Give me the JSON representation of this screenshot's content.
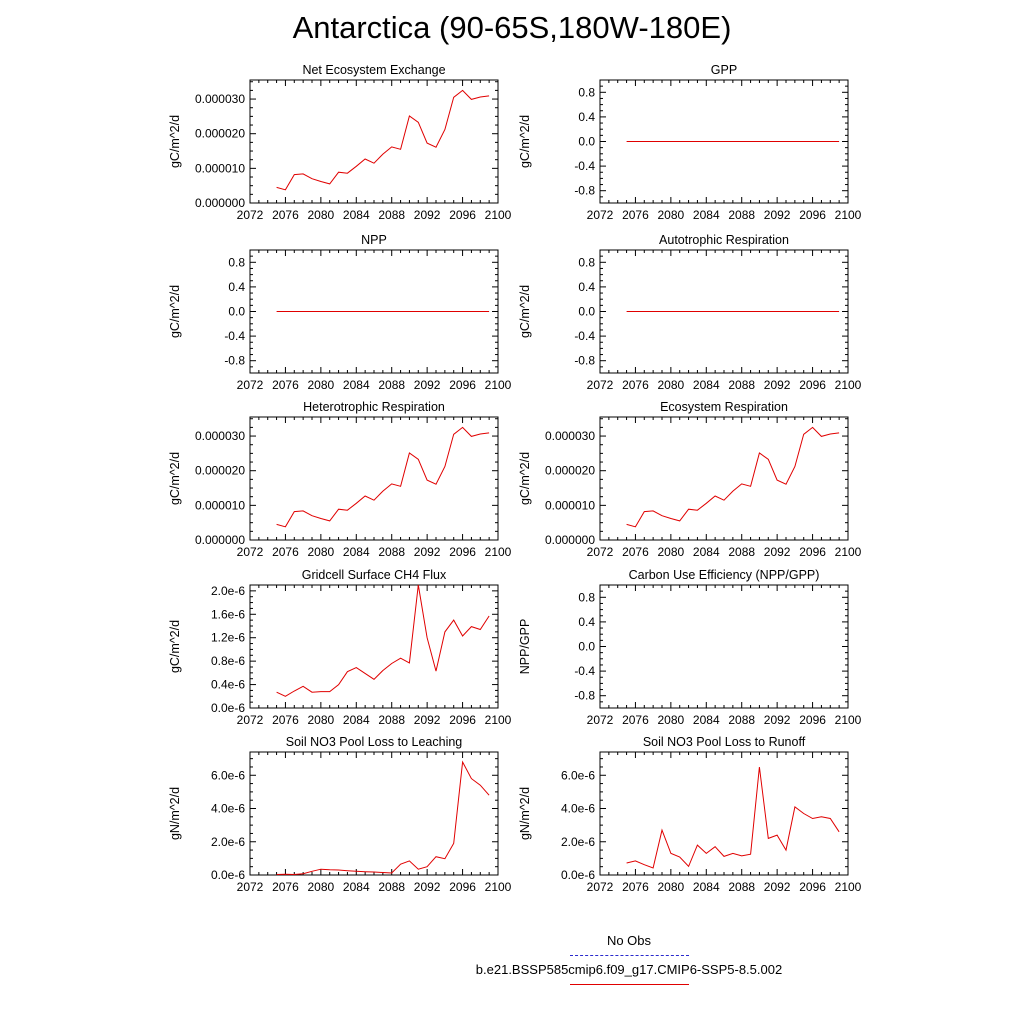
{
  "title": "Antarctica (90-65S,180W-180E)",
  "colors": {
    "series": "#e00000",
    "obs": "#2a2acd",
    "axis": "#000000"
  },
  "legend": {
    "entries": [
      {
        "label": "No Obs",
        "style": "dashed",
        "color": "#2a2acd"
      },
      {
        "label": "b.e21.BSSP585cmip6.f09_g17.CMIP6-SSP5-8.5.002",
        "style": "solid",
        "color": "#e00000"
      }
    ]
  },
  "chart_data": [
    {
      "type": "line",
      "title": "Net Ecosystem Exchange",
      "xlabel": "",
      "ylabel": "gC/m^2/d",
      "xlim": [
        2072,
        2100
      ],
      "ylim": [
        0,
        3.55e-05
      ],
      "xticks": [
        2072,
        2076,
        2080,
        2084,
        2088,
        2092,
        2096,
        2100
      ],
      "yticks": [
        0,
        1e-05,
        2e-05,
        3e-05
      ],
      "ytick_labels": [
        "0.000000",
        "0.000010",
        "0.000020",
        "0.000030"
      ],
      "series": [
        {
          "x": [
            2075,
            2076,
            2077,
            2078,
            2079,
            2080,
            2081,
            2082,
            2083,
            2084,
            2085,
            2086,
            2087,
            2088,
            2089,
            2090,
            2091,
            2092,
            2093,
            2094,
            2095,
            2096,
            2097,
            2098,
            2099
          ],
          "values": [
            4.5e-06,
            3.8e-06,
            8.2e-06,
            8.4e-06,
            7e-06,
            6.2e-06,
            5.5e-06,
            8.9e-06,
            8.6e-06,
            1.06e-05,
            1.27e-05,
            1.15e-05,
            1.41e-05,
            1.62e-05,
            1.55e-05,
            2.51e-05,
            2.33e-05,
            1.73e-05,
            1.61e-05,
            2.12e-05,
            3.05e-05,
            3.25e-05,
            2.99e-05,
            3.06e-05,
            3.09e-05
          ]
        }
      ]
    },
    {
      "type": "line",
      "title": "GPP",
      "xlabel": "",
      "ylabel": "gC/m^2/d",
      "xlim": [
        2072,
        2100
      ],
      "ylim": [
        -1,
        1
      ],
      "xticks": [
        2072,
        2076,
        2080,
        2084,
        2088,
        2092,
        2096,
        2100
      ],
      "yticks": [
        -0.8,
        -0.4,
        0,
        0.4,
        0.8
      ],
      "ytick_labels": [
        "-0.8",
        "-0.4",
        "0.0",
        "0.4",
        "0.8"
      ],
      "series": [
        {
          "x": [
            2075,
            2099
          ],
          "values": [
            0,
            0
          ]
        }
      ]
    },
    {
      "type": "line",
      "title": "NPP",
      "xlabel": "",
      "ylabel": "gC/m^2/d",
      "xlim": [
        2072,
        2100
      ],
      "ylim": [
        -1,
        1
      ],
      "xticks": [
        2072,
        2076,
        2080,
        2084,
        2088,
        2092,
        2096,
        2100
      ],
      "yticks": [
        -0.8,
        -0.4,
        0,
        0.4,
        0.8
      ],
      "ytick_labels": [
        "-0.8",
        "-0.4",
        "0.0",
        "0.4",
        "0.8"
      ],
      "series": [
        {
          "x": [
            2075,
            2099
          ],
          "values": [
            0,
            0
          ]
        }
      ]
    },
    {
      "type": "line",
      "title": "Autotrophic Respiration",
      "xlabel": "",
      "ylabel": "gC/m^2/d",
      "xlim": [
        2072,
        2100
      ],
      "ylim": [
        -1,
        1
      ],
      "xticks": [
        2072,
        2076,
        2080,
        2084,
        2088,
        2092,
        2096,
        2100
      ],
      "yticks": [
        -0.8,
        -0.4,
        0,
        0.4,
        0.8
      ],
      "ytick_labels": [
        "-0.8",
        "-0.4",
        "0.0",
        "0.4",
        "0.8"
      ],
      "series": [
        {
          "x": [
            2075,
            2099
          ],
          "values": [
            0,
            0
          ]
        }
      ]
    },
    {
      "type": "line",
      "title": "Heterotrophic Respiration",
      "xlabel": "",
      "ylabel": "gC/m^2/d",
      "xlim": [
        2072,
        2100
      ],
      "ylim": [
        0,
        3.55e-05
      ],
      "xticks": [
        2072,
        2076,
        2080,
        2084,
        2088,
        2092,
        2096,
        2100
      ],
      "yticks": [
        0,
        1e-05,
        2e-05,
        3e-05
      ],
      "ytick_labels": [
        "0.000000",
        "0.000010",
        "0.000020",
        "0.000030"
      ],
      "series": [
        {
          "x": [
            2075,
            2076,
            2077,
            2078,
            2079,
            2080,
            2081,
            2082,
            2083,
            2084,
            2085,
            2086,
            2087,
            2088,
            2089,
            2090,
            2091,
            2092,
            2093,
            2094,
            2095,
            2096,
            2097,
            2098,
            2099
          ],
          "values": [
            4.5e-06,
            3.8e-06,
            8.2e-06,
            8.4e-06,
            7e-06,
            6.2e-06,
            5.5e-06,
            8.9e-06,
            8.6e-06,
            1.06e-05,
            1.27e-05,
            1.15e-05,
            1.41e-05,
            1.62e-05,
            1.55e-05,
            2.51e-05,
            2.33e-05,
            1.73e-05,
            1.61e-05,
            2.12e-05,
            3.05e-05,
            3.25e-05,
            2.99e-05,
            3.06e-05,
            3.09e-05
          ]
        }
      ]
    },
    {
      "type": "line",
      "title": "Ecosystem Respiration",
      "xlabel": "",
      "ylabel": "gC/m^2/d",
      "xlim": [
        2072,
        2100
      ],
      "ylim": [
        0,
        3.55e-05
      ],
      "xticks": [
        2072,
        2076,
        2080,
        2084,
        2088,
        2092,
        2096,
        2100
      ],
      "yticks": [
        0,
        1e-05,
        2e-05,
        3e-05
      ],
      "ytick_labels": [
        "0.000000",
        "0.000010",
        "0.000020",
        "0.000030"
      ],
      "series": [
        {
          "x": [
            2075,
            2076,
            2077,
            2078,
            2079,
            2080,
            2081,
            2082,
            2083,
            2084,
            2085,
            2086,
            2087,
            2088,
            2089,
            2090,
            2091,
            2092,
            2093,
            2094,
            2095,
            2096,
            2097,
            2098,
            2099
          ],
          "values": [
            4.5e-06,
            3.8e-06,
            8.2e-06,
            8.4e-06,
            7e-06,
            6.2e-06,
            5.5e-06,
            8.9e-06,
            8.6e-06,
            1.06e-05,
            1.27e-05,
            1.15e-05,
            1.41e-05,
            1.62e-05,
            1.55e-05,
            2.51e-05,
            2.33e-05,
            1.73e-05,
            1.61e-05,
            2.12e-05,
            3.05e-05,
            3.25e-05,
            2.99e-05,
            3.06e-05,
            3.09e-05
          ]
        }
      ]
    },
    {
      "type": "line",
      "title": "Gridcell Surface CH4 Flux",
      "xlabel": "",
      "ylabel": "gC/m^2/d",
      "xlim": [
        2072,
        2100
      ],
      "ylim": [
        0,
        2.1e-06
      ],
      "xticks": [
        2072,
        2076,
        2080,
        2084,
        2088,
        2092,
        2096,
        2100
      ],
      "yticks": [
        0,
        4e-07,
        8e-07,
        1.2e-06,
        1.6e-06,
        2e-06
      ],
      "ytick_labels": [
        "0.0e-6",
        "0.4e-6",
        "0.8e-6",
        "1.2e-6",
        "1.6e-6",
        "2.0e-6"
      ],
      "series": [
        {
          "x": [
            2075,
            2076,
            2077,
            2078,
            2079,
            2080,
            2081,
            2082,
            2083,
            2084,
            2085,
            2086,
            2087,
            2088,
            2089,
            2090,
            2091,
            2092,
            2093,
            2094,
            2095,
            2096,
            2097,
            2098,
            2099
          ],
          "values": [
            2.7e-07,
            2e-07,
            2.9e-07,
            3.7e-07,
            2.7e-07,
            2.8e-07,
            2.8e-07,
            4e-07,
            6.2e-07,
            6.9e-07,
            5.9e-07,
            4.9e-07,
            6.4e-07,
            7.6e-07,
            8.5e-07,
            7.7e-07,
            2.1e-06,
            1.2e-06,
            6.3e-07,
            1.3e-06,
            1.5e-06,
            1.23e-06,
            1.39e-06,
            1.34e-06,
            1.57e-06
          ]
        }
      ]
    },
    {
      "type": "line",
      "title": "Carbon Use Efficiency (NPP/GPP)",
      "xlabel": "",
      "ylabel": "NPP/GPP",
      "xlim": [
        2072,
        2100
      ],
      "ylim": [
        -1,
        1
      ],
      "xticks": [
        2072,
        2076,
        2080,
        2084,
        2088,
        2092,
        2096,
        2100
      ],
      "yticks": [
        -0.8,
        -0.4,
        0,
        0.4,
        0.8
      ],
      "ytick_labels": [
        "-0.8",
        "-0.4",
        "0.0",
        "0.4",
        "0.8"
      ],
      "series": []
    },
    {
      "type": "line",
      "title": "Soil NO3 Pool Loss to Leaching",
      "xlabel": "",
      "ylabel": "gN/m^2/d",
      "xlim": [
        2072,
        2100
      ],
      "ylim": [
        0,
        7.4e-06
      ],
      "xticks": [
        2072,
        2076,
        2080,
        2084,
        2088,
        2092,
        2096,
        2100
      ],
      "yticks": [
        0,
        2e-06,
        4e-06,
        6e-06
      ],
      "ytick_labels": [
        "0.0e-6",
        "2.0e-6",
        "4.0e-6",
        "6.0e-6"
      ],
      "series": [
        {
          "x": [
            2075,
            2076,
            2077,
            2078,
            2079,
            2080,
            2081,
            2082,
            2083,
            2084,
            2085,
            2086,
            2087,
            2088,
            2089,
            2090,
            2091,
            2092,
            2093,
            2094,
            2095,
            2096,
            2097,
            2098,
            2099
          ],
          "values": [
            3e-08,
            5e-08,
            3e-08,
            8e-08,
            2.2e-07,
            3.5e-07,
            3.2e-07,
            3e-07,
            2.6e-07,
            2.2e-07,
            2e-07,
            1.8e-07,
            1.5e-07,
            1.2e-07,
            6.5e-07,
            8.5e-07,
            3.5e-07,
            5e-07,
            1.1e-06,
            9.8e-07,
            1.9e-06,
            6.8e-06,
            5.8e-06,
            5.4e-06,
            4.8e-06
          ]
        }
      ]
    },
    {
      "type": "line",
      "title": "Soil NO3 Pool Loss to Runoff",
      "xlabel": "",
      "ylabel": "gN/m^2/d",
      "xlim": [
        2072,
        2100
      ],
      "ylim": [
        0,
        7.4e-06
      ],
      "xticks": [
        2072,
        2076,
        2080,
        2084,
        2088,
        2092,
        2096,
        2100
      ],
      "yticks": [
        0,
        2e-06,
        4e-06,
        6e-06
      ],
      "ytick_labels": [
        "0.0e-6",
        "2.0e-6",
        "4.0e-6",
        "6.0e-6"
      ],
      "series": [
        {
          "x": [
            2075,
            2076,
            2077,
            2078,
            2079,
            2080,
            2081,
            2082,
            2083,
            2084,
            2085,
            2086,
            2087,
            2088,
            2089,
            2090,
            2091,
            2092,
            2093,
            2094,
            2095,
            2096,
            2097,
            2098,
            2099
          ],
          "values": [
            7.2e-07,
            8.5e-07,
            6.2e-07,
            4.2e-07,
            2.7e-06,
            1.3e-06,
            1.08e-06,
            5.2e-07,
            1.8e-06,
            1.3e-06,
            1.7e-06,
            1.12e-06,
            1.3e-06,
            1.15e-06,
            1.25e-06,
            6.5e-06,
            2.2e-06,
            2.4e-06,
            1.5e-06,
            4.1e-06,
            3.7e-06,
            3.4e-06,
            3.5e-06,
            3.4e-06,
            2.6e-06
          ]
        }
      ]
    }
  ]
}
